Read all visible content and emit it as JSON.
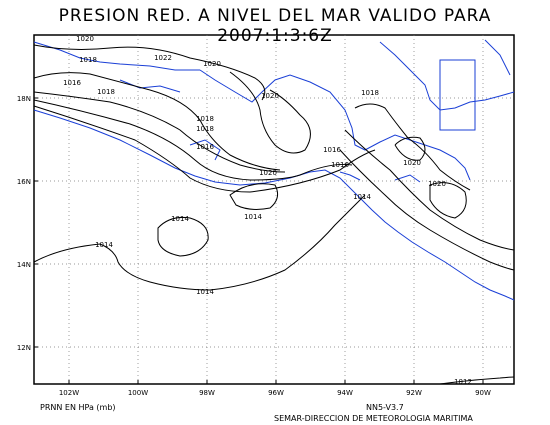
{
  "title": "PRESION RED. A NIVEL DEL MAR VALIDO PARA 2007:1:3:6Z",
  "map": {
    "lon_ticks": [
      "102W",
      "100W",
      "98W",
      "96W",
      "94W",
      "92W",
      "90W"
    ],
    "lat_ticks": [
      "18N",
      "16N",
      "14N",
      "12N"
    ],
    "isobar_labels": [
      "1020",
      "1018",
      "1022",
      "1020",
      "1016",
      "1018",
      "1020",
      "1018",
      "1018",
      "1016",
      "1016",
      "1020",
      "1018",
      "1016",
      "1020",
      "1020",
      "1014",
      "1014",
      "1014",
      "1014",
      "1014",
      "1012"
    ],
    "coast_color": "#1a3fd6"
  },
  "footer": {
    "left": "PRNN EN HPa (mb)",
    "version": "NN5-V3.7",
    "agency": "SEMAR-DIRECCION DE METEOROLOGIA MARITIMA"
  }
}
